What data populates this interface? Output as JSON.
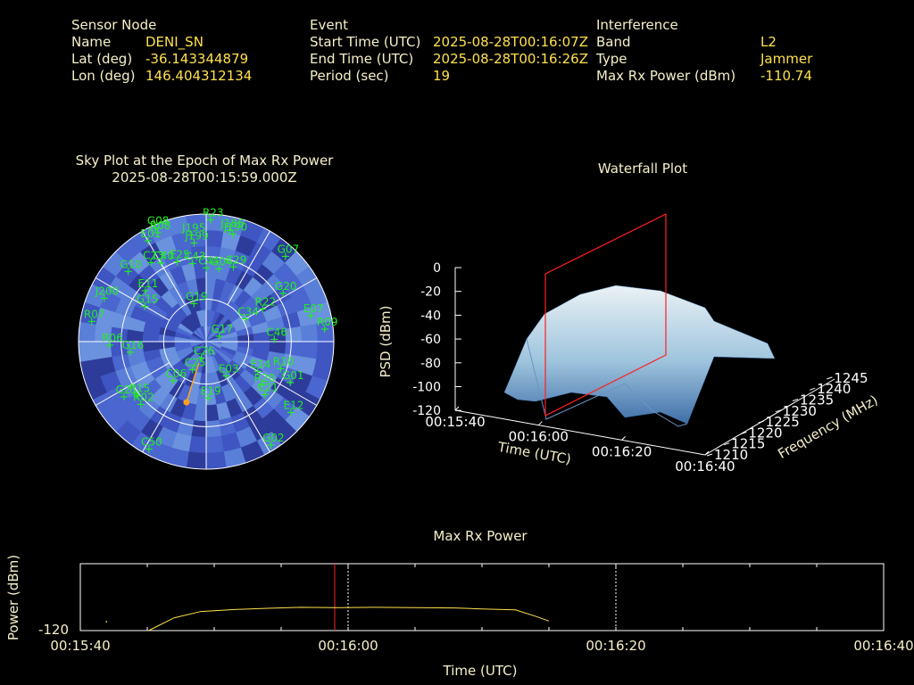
{
  "header": {
    "sensor": {
      "title": "Sensor Node",
      "rows": [
        {
          "label": "Name",
          "value": "DENI_SN"
        },
        {
          "label": "Lat (deg)",
          "value": "-36.143344879"
        },
        {
          "label": "Lon (deg)",
          "value": "146.404312134"
        }
      ]
    },
    "event": {
      "title": "Event",
      "rows": [
        {
          "label": "Start Time (UTC)",
          "value": "2025-08-28T00:16:07Z"
        },
        {
          "label": "End Time (UTC)",
          "value": "2025-08-28T00:16:26Z"
        },
        {
          "label": "Period (sec)",
          "value": "19"
        }
      ]
    },
    "interference": {
      "title": "Interference",
      "rows": [
        {
          "label": "Band",
          "value": "L2"
        },
        {
          "label": "Type",
          "value": "Jammer"
        },
        {
          "label": "Max Rx Power (dBm)",
          "value": "-110.74"
        }
      ]
    }
  },
  "sky_plot": {
    "title": "Sky Plot at the Epoch of Max Rx Power",
    "epoch": "2025-08-28T00:15:59.000Z",
    "ring_color": "#ffffff",
    "sat_color": "#22ee22",
    "bg_colors": [
      "#3f55c2",
      "#4a66cf",
      "#5a7fd8",
      "#6a92de",
      "#2d3c9a"
    ],
    "satellites": [
      {
        "id": "G08",
        "az": 336,
        "el": 2
      },
      {
        "id": "R08",
        "az": 336,
        "el": 6
      },
      {
        "id": "E01",
        "az": 330,
        "el": 8
      },
      {
        "id": "R23",
        "az": 2,
        "el": 4
      },
      {
        "id": "J195",
        "az": 352,
        "el": 14
      },
      {
        "id": "J199",
        "az": 353,
        "el": 20
      },
      {
        "id": "J186",
        "az": 12,
        "el": 10
      },
      {
        "id": "J190",
        "az": 14,
        "el": 12
      },
      {
        "id": "G07",
        "az": 43,
        "el": 8
      },
      {
        "id": "G10",
        "az": 312,
        "el": 16
      },
      {
        "id": "C23",
        "az": 325,
        "el": 22
      },
      {
        "id": "C40",
        "az": 330,
        "el": 26
      },
      {
        "id": "E25",
        "az": 340,
        "el": 30
      },
      {
        "id": "C43",
        "az": 350,
        "el": 34
      },
      {
        "id": "C44",
        "az": 360,
        "el": 38
      },
      {
        "id": "G04",
        "az": 10,
        "el": 38
      },
      {
        "id": "C29",
        "az": 20,
        "el": 34
      },
      {
        "id": "G20",
        "az": 58,
        "el": 26
      },
      {
        "id": "R22",
        "az": 60,
        "el": 44
      },
      {
        "id": "E07",
        "az": 76,
        "el": 14
      },
      {
        "id": "R09",
        "az": 84,
        "el": 6
      },
      {
        "id": "J200",
        "az": 293,
        "el": 12
      },
      {
        "id": "R07",
        "az": 280,
        "el": 8
      },
      {
        "id": "G15",
        "az": 300,
        "el": 40
      },
      {
        "id": "E11",
        "az": 310,
        "el": 34
      },
      {
        "id": "G19",
        "az": 342,
        "el": 62
      },
      {
        "id": "C34",
        "az": 60,
        "el": 58
      },
      {
        "id": "G17",
        "az": 68,
        "el": 80
      },
      {
        "id": "R06",
        "az": 268,
        "el": 22
      },
      {
        "id": "G16",
        "az": 262,
        "el": 36
      },
      {
        "id": "C46",
        "az": 88,
        "el": 42
      },
      {
        "id": "R10",
        "az": 110,
        "el": 34
      },
      {
        "id": "E03",
        "az": 150,
        "el": 62
      },
      {
        "id": "E14",
        "az": 120,
        "el": 48
      },
      {
        "id": "R20",
        "az": 128,
        "el": 40
      },
      {
        "id": "C21",
        "az": 132,
        "el": 34
      },
      {
        "id": "G01",
        "az": 116,
        "el": 24
      },
      {
        "id": "E12",
        "az": 130,
        "el": 12
      },
      {
        "id": "C26",
        "az": 196,
        "el": 78
      },
      {
        "id": "C25",
        "az": 206,
        "el": 68
      },
      {
        "id": "C06",
        "az": 220,
        "el": 54
      },
      {
        "id": "E19",
        "az": 178,
        "el": 50
      },
      {
        "id": "R15",
        "az": 232,
        "el": 28
      },
      {
        "id": "G21",
        "az": 236,
        "el": 20
      },
      {
        "id": "R02",
        "az": 226,
        "el": 26
      },
      {
        "id": "C50",
        "az": 208,
        "el": 4
      },
      {
        "id": "G02",
        "az": 148,
        "el": 4
      }
    ],
    "highlight": {
      "az": 198,
      "el": 45,
      "color": "#ffa020"
    }
  },
  "waterfall": {
    "title": "Waterfall Plot",
    "zlabel": "PSD (dBm)",
    "xlabel": "Time (UTC)",
    "ylabel": "Frequency (MHz)",
    "z_ticks": [
      "0",
      "-20",
      "-40",
      "-60",
      "-80",
      "-100",
      "-120"
    ],
    "time_ticks": [
      "00:15:40",
      "00:16:00",
      "00:16:20",
      "00:16:40"
    ],
    "freq_ticks": [
      "1210",
      "1215",
      "1220",
      "1225",
      "1230",
      "1235",
      "1240",
      "1245"
    ],
    "cursor_color": "#ff2020",
    "surface_top": "#eaf2f5",
    "surface_mid": "#9ec4dd",
    "surface_low": "#3f6fa8"
  },
  "power_plot": {
    "title": "Max Rx Power",
    "ylabel": "Power (dBm)",
    "y_tick": "-120",
    "xlabel": "Time (UTC)",
    "x_ticks": [
      "00:15:40",
      "00:16:00",
      "00:16:20",
      "00:16:40"
    ],
    "trace_color": "#ffe14d",
    "cursor_color": "#ff2020",
    "trace": [
      {
        "t": 5.1,
        "p": -121
      },
      {
        "t": 7.0,
        "p": -117
      },
      {
        "t": 9.0,
        "p": -115
      },
      {
        "t": 11.5,
        "p": -114.4
      },
      {
        "t": 14.0,
        "p": -114.0
      },
      {
        "t": 16.5,
        "p": -113.7
      },
      {
        "t": 19.0,
        "p": -113.8
      },
      {
        "t": 22.0,
        "p": -113.7
      },
      {
        "t": 25.0,
        "p": -113.8
      },
      {
        "t": 28.0,
        "p": -113.9
      },
      {
        "t": 30.0,
        "p": -114.2
      },
      {
        "t": 32.5,
        "p": -114.5
      },
      {
        "t": 34.0,
        "p": -116.5
      },
      {
        "t": 35.0,
        "p": -118
      }
    ],
    "trace_dot": {
      "t": 1.9,
      "p": -118
    },
    "cursor_t": 19.0,
    "markers_t": [
      20.0,
      40.0
    ]
  }
}
